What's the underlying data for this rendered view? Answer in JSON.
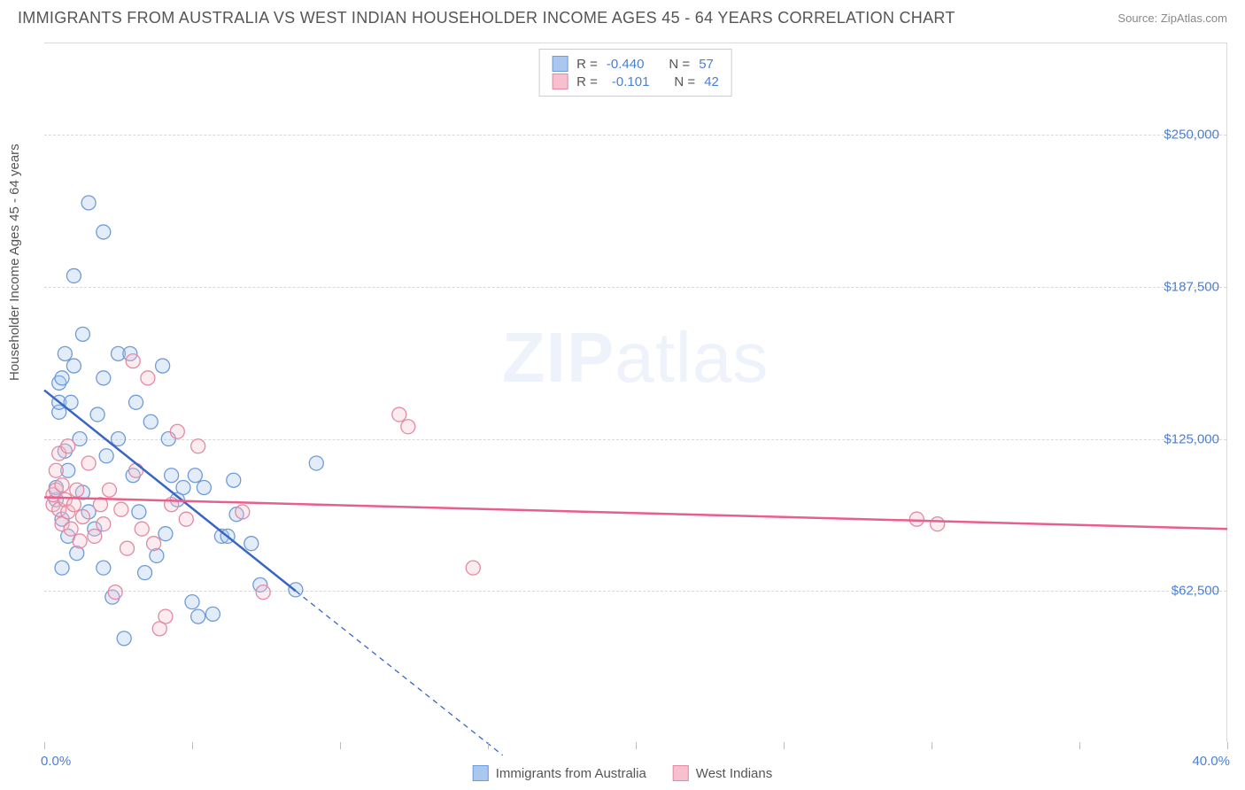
{
  "header": {
    "title": "IMMIGRANTS FROM AUSTRALIA VS WEST INDIAN HOUSEHOLDER INCOME AGES 45 - 64 YEARS CORRELATION CHART",
    "source_label": "Source:",
    "source_name": "ZipAtlas.com"
  },
  "chart": {
    "type": "scatter-correlation",
    "ylabel": "Householder Income Ages 45 - 64 years",
    "xlim": [
      0,
      40
    ],
    "ylim": [
      0,
      287500
    ],
    "x_tick_positions": [
      0,
      5,
      10,
      15,
      20,
      25,
      30,
      35,
      40
    ],
    "x_axis_labels": {
      "min": "0.0%",
      "max": "40.0%"
    },
    "y_ticks": [
      {
        "v": 62500,
        "label": "$62,500"
      },
      {
        "v": 125000,
        "label": "$125,000"
      },
      {
        "v": 187500,
        "label": "$187,500"
      },
      {
        "v": 250000,
        "label": "$250,000"
      }
    ],
    "background_color": "#ffffff",
    "grid_color": "#d8d8d8",
    "axis_color": "#dadada",
    "tick_font_color": "#4a7fd6",
    "label_font_color": "#555555",
    "marker_radius": 8,
    "marker_fill_opacity": 0.32,
    "line_width_solid": 2.5,
    "watermark": {
      "zip": "ZIP",
      "atlas": "atlas",
      "color": "#eef3fb"
    },
    "bottom_legend": [
      {
        "label": "Immigrants from Australia",
        "fill": "#a9c7ef",
        "stroke": "#6f9bd8"
      },
      {
        "label": "West Indians",
        "fill": "#f7c0ce",
        "stroke": "#e38aa3"
      }
    ],
    "top_legend": [
      {
        "swatch_fill": "#a9c7ef",
        "swatch_stroke": "#6f9bd8",
        "r_label": "R =",
        "r_value": "-0.440",
        "n_label": "N =",
        "n_value": "57"
      },
      {
        "swatch_fill": "#f7c0ce",
        "swatch_stroke": "#e38aa3",
        "r_label": "R =",
        "r_value": "-0.101",
        "n_label": "N =",
        "n_value": "42"
      }
    ],
    "series": [
      {
        "name": "Immigrants from Australia",
        "fill": "#a9c7ef",
        "stroke": "#6f9bd8",
        "trend": {
          "x1": 0,
          "y1": 145000,
          "x2_solid": 8.5,
          "y2_solid": 62500,
          "x2_dash": 15.5,
          "y2_dash": -5000,
          "color": "#3866c4"
        },
        "points": [
          [
            0.4,
            100000
          ],
          [
            0.4,
            105000
          ],
          [
            0.5,
            136000
          ],
          [
            0.5,
            140000
          ],
          [
            0.5,
            148000
          ],
          [
            0.6,
            92000
          ],
          [
            0.6,
            150000
          ],
          [
            0.6,
            72000
          ],
          [
            0.7,
            120000
          ],
          [
            0.7,
            160000
          ],
          [
            0.8,
            112000
          ],
          [
            0.8,
            85000
          ],
          [
            0.9,
            140000
          ],
          [
            1.0,
            192000
          ],
          [
            1.0,
            155000
          ],
          [
            1.1,
            78000
          ],
          [
            1.2,
            125000
          ],
          [
            1.3,
            168000
          ],
          [
            1.3,
            103000
          ],
          [
            1.5,
            222000
          ],
          [
            1.5,
            95000
          ],
          [
            1.7,
            88000
          ],
          [
            1.8,
            135000
          ],
          [
            2.0,
            72000
          ],
          [
            2.0,
            150000
          ],
          [
            2.0,
            210000
          ],
          [
            2.1,
            118000
          ],
          [
            2.3,
            60000
          ],
          [
            2.5,
            125000
          ],
          [
            2.5,
            160000
          ],
          [
            2.7,
            43000
          ],
          [
            2.9,
            160000
          ],
          [
            3.0,
            110000
          ],
          [
            3.1,
            140000
          ],
          [
            3.2,
            95000
          ],
          [
            3.4,
            70000
          ],
          [
            3.6,
            132000
          ],
          [
            3.8,
            77000
          ],
          [
            4.0,
            155000
          ],
          [
            4.1,
            86000
          ],
          [
            4.2,
            125000
          ],
          [
            4.3,
            110000
          ],
          [
            4.5,
            100000
          ],
          [
            4.7,
            105000
          ],
          [
            5.0,
            58000
          ],
          [
            5.1,
            110000
          ],
          [
            5.2,
            52000
          ],
          [
            5.4,
            105000
          ],
          [
            5.7,
            53000
          ],
          [
            6.0,
            85000
          ],
          [
            6.2,
            85000
          ],
          [
            6.4,
            108000
          ],
          [
            6.5,
            94000
          ],
          [
            7.0,
            82000
          ],
          [
            7.3,
            65000
          ],
          [
            8.5,
            63000
          ],
          [
            9.2,
            115000
          ]
        ]
      },
      {
        "name": "West Indians",
        "fill": "#f7c0ce",
        "stroke": "#e38aa3",
        "trend": {
          "x1": 0,
          "y1": 101000,
          "x2_solid": 40,
          "y2_solid": 88000,
          "color": "#e85f8c"
        },
        "points": [
          [
            0.3,
            98000
          ],
          [
            0.3,
            102000
          ],
          [
            0.4,
            104000
          ],
          [
            0.4,
            112000
          ],
          [
            0.5,
            119000
          ],
          [
            0.5,
            96000
          ],
          [
            0.6,
            106000
          ],
          [
            0.6,
            90000
          ],
          [
            0.7,
            100000
          ],
          [
            0.8,
            95000
          ],
          [
            0.8,
            122000
          ],
          [
            0.9,
            88000
          ],
          [
            1.0,
            98000
          ],
          [
            1.1,
            104000
          ],
          [
            1.2,
            83000
          ],
          [
            1.3,
            93000
          ],
          [
            1.5,
            115000
          ],
          [
            1.7,
            85000
          ],
          [
            1.9,
            98000
          ],
          [
            2.0,
            90000
          ],
          [
            2.2,
            104000
          ],
          [
            2.4,
            62000
          ],
          [
            2.6,
            96000
          ],
          [
            2.8,
            80000
          ],
          [
            3.0,
            157000
          ],
          [
            3.1,
            112000
          ],
          [
            3.3,
            88000
          ],
          [
            3.5,
            150000
          ],
          [
            3.7,
            82000
          ],
          [
            3.9,
            47000
          ],
          [
            4.1,
            52000
          ],
          [
            4.3,
            98000
          ],
          [
            4.5,
            128000
          ],
          [
            4.8,
            92000
          ],
          [
            5.2,
            122000
          ],
          [
            6.7,
            95000
          ],
          [
            7.4,
            62000
          ],
          [
            12.0,
            135000
          ],
          [
            12.3,
            130000
          ],
          [
            14.5,
            72000
          ],
          [
            29.5,
            92000
          ],
          [
            30.2,
            90000
          ]
        ]
      }
    ]
  }
}
